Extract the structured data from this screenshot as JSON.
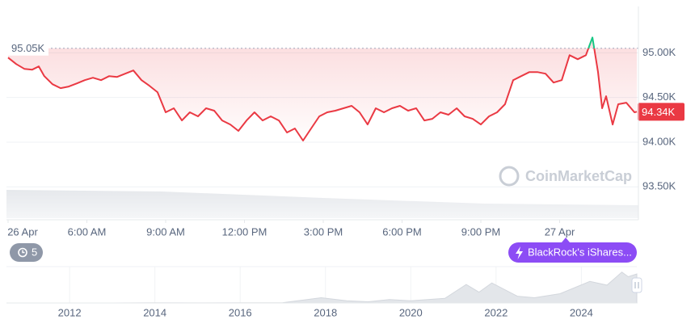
{
  "chart_data": [
    {
      "type": "line",
      "x": [
        0,
        0.31,
        0.62,
        0.92,
        1.17,
        1.38,
        1.69,
        2.0,
        2.31,
        2.62,
        2.92,
        3.23,
        3.54,
        3.85,
        4.15,
        4.46,
        4.77,
        5.08,
        5.38,
        5.69,
        6.0,
        6.31,
        6.62,
        6.92,
        7.23,
        7.54,
        7.85,
        8.15,
        8.46,
        8.77,
        9.08,
        9.38,
        9.69,
        10.0,
        10.31,
        10.62,
        10.92,
        11.23,
        11.54,
        11.85,
        12.15,
        12.46,
        12.77,
        13.08,
        13.38,
        13.69,
        14.0,
        14.31,
        14.62,
        14.92,
        15.23,
        15.54,
        15.85,
        16.15,
        16.46,
        16.77,
        17.08,
        17.38,
        17.69,
        18.0,
        18.31,
        18.62,
        18.92,
        19.23,
        19.54,
        19.85,
        20.15,
        20.46,
        20.77,
        21.08,
        21.38,
        21.69,
        22.0,
        22.25,
        22.46,
        22.62,
        22.77,
        23.02,
        23.23,
        23.54,
        23.85,
        23.94
      ],
      "series": [
        {
          "color": "#ea3943",
          "values": [
            94946,
            94874,
            94820,
            94811,
            94847,
            94739,
            94649,
            94604,
            94622,
            94658,
            94694,
            94721,
            94694,
            94739,
            94730,
            94766,
            94802,
            94694,
            94631,
            94559,
            94334,
            94379,
            94243,
            94334,
            94289,
            94379,
            94352,
            94243,
            94198,
            94126,
            94243,
            94334,
            94243,
            94289,
            94243,
            94108,
            94153,
            94018,
            94153,
            94289,
            94334,
            94352,
            94379,
            94406,
            94334,
            94198,
            94379,
            94334,
            94379,
            94406,
            94352,
            94379,
            94243,
            94261,
            94334,
            94307,
            94379,
            94289,
            94261,
            94198,
            94289,
            94334,
            94424,
            94694,
            94739,
            94784,
            94784,
            94766,
            94667,
            94694,
            94973,
            94928,
            94973,
            95171,
            94784,
            94379,
            94514,
            94198,
            94424,
            94442,
            94334,
            94340
          ]
        }
      ],
      "above_color": "#16c784",
      "reference": {
        "value": 95050,
        "label": "95.05K"
      },
      "last_price": {
        "value": 94340,
        "label": "94.34K"
      },
      "xlim": [
        0,
        24
      ],
      "ylim": [
        93150,
        95500
      ],
      "xticks": [
        {
          "value": 0,
          "label": "26 Apr"
        },
        {
          "value": 3,
          "label": "6:00 AM"
        },
        {
          "value": 6,
          "label": "9:00 AM"
        },
        {
          "value": 9,
          "label": "12:00 PM"
        },
        {
          "value": 12,
          "label": "3:00 PM"
        },
        {
          "value": 15,
          "label": "6:00 PM"
        },
        {
          "value": 18,
          "label": "9:00 PM"
        },
        {
          "value": 21,
          "label": "27 Apr"
        }
      ],
      "yticks": [
        {
          "value": 93500,
          "label": "93.50K"
        },
        {
          "value": 94000,
          "label": "94.00K"
        },
        {
          "value": 94500,
          "label": "94.50K"
        },
        {
          "value": 95000,
          "label": "95.00K"
        }
      ],
      "grid": true,
      "watermark": "CoinMarketCap"
    },
    {
      "type": "area",
      "x": [
        2010.52,
        2012,
        2013,
        2013.9,
        2014,
        2015,
        2016,
        2017,
        2017.9,
        2018.5,
        2019,
        2019.5,
        2020,
        2020.8,
        2021.3,
        2021.6,
        2021.9,
        2022.5,
        2022.9,
        2023.5,
        2024.2,
        2024.6,
        2024.95,
        2025.1,
        2025.3
      ],
      "values": [
        0,
        10,
        120,
        800,
        500,
        250,
        430,
        1000,
        17000,
        7000,
        4000,
        11000,
        7000,
        15000,
        60000,
        35000,
        65000,
        22000,
        17000,
        30000,
        70000,
        58000,
        100000,
        85000,
        94000
      ],
      "color": "#e3e6ea",
      "xlim": [
        2010.52,
        2025.3
      ],
      "ylim": [
        0,
        110000
      ],
      "xticks": [
        2012,
        2014,
        2016,
        2018,
        2020,
        2022,
        2024
      ]
    }
  ],
  "badges": {
    "events": 5,
    "news": "BlackRock's iShares..."
  }
}
